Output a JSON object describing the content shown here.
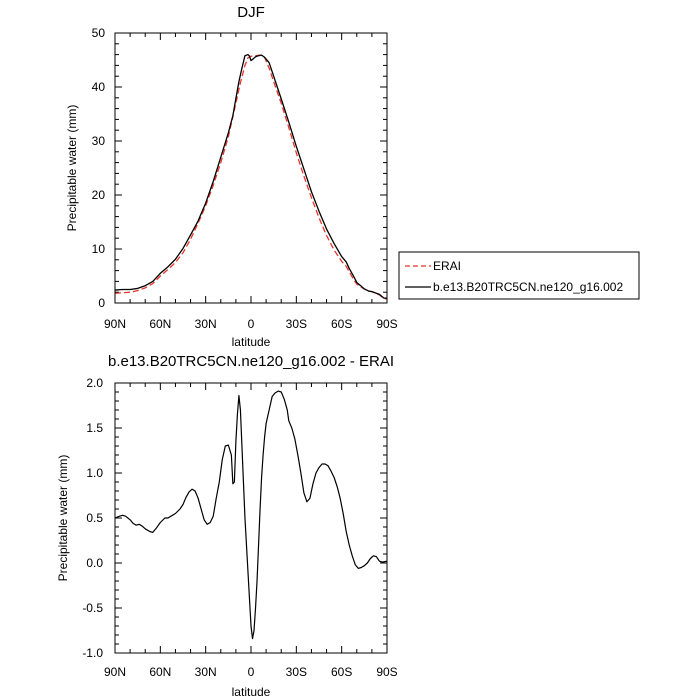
{
  "chart_data": [
    {
      "type": "line",
      "title": "DJF",
      "xlabel": "latitude",
      "ylabel": "Precipitable water (mm)",
      "xlim": [
        90,
        -90
      ],
      "ylim": [
        0,
        50
      ],
      "xticks": [
        90,
        60,
        30,
        0,
        -30,
        -60,
        -90
      ],
      "xtick_labels": [
        "90N",
        "60N",
        "30N",
        "0",
        "30S",
        "60S",
        "90S"
      ],
      "yticks": [
        0,
        10,
        20,
        30,
        40,
        50
      ],
      "ytick_labels": [
        "0",
        "10",
        "20",
        "30",
        "40",
        "50"
      ],
      "legend_position": "right",
      "series": [
        {
          "name": "ERAI",
          "style": "dashed",
          "color": "#e8352b",
          "x": [
            90,
            85,
            80,
            75,
            70,
            65,
            60,
            55,
            50,
            45,
            40,
            35,
            30,
            25,
            20,
            15,
            10,
            7,
            4,
            2,
            0,
            -3,
            -6,
            -9,
            -12,
            -15,
            -20,
            -25,
            -30,
            -35,
            -40,
            -45,
            -50,
            -55,
            -60,
            -63,
            -65,
            -68,
            -70,
            -73,
            -75,
            -78,
            -80,
            -85,
            -88,
            -90
          ],
          "values": [
            1.8,
            1.9,
            2.0,
            2.3,
            2.8,
            3.6,
            5.0,
            6.2,
            7.5,
            9.3,
            11.8,
            14.8,
            18.0,
            21.8,
            26.0,
            30.8,
            37.0,
            40.8,
            44.0,
            45.4,
            45.7,
            45.8,
            45.9,
            45.5,
            43.5,
            41.0,
            37.0,
            32.5,
            27.8,
            23.5,
            19.5,
            15.8,
            12.5,
            9.8,
            7.7,
            6.8,
            5.8,
            4.3,
            3.5,
            2.9,
            2.6,
            2.2,
            2.1,
            1.5,
            0.8,
            0.8
          ]
        },
        {
          "name": "b.e13.B20TRC5CN.ne120_g16.002",
          "style": "solid",
          "color": "#000000",
          "x": [
            90,
            85,
            80,
            75,
            70,
            65,
            60,
            55,
            50,
            45,
            40,
            35,
            30,
            25,
            20,
            15,
            12,
            10,
            8,
            6,
            4,
            2,
            1,
            0,
            -1,
            -3,
            -5,
            -7,
            -9,
            -12,
            -15,
            -20,
            -25,
            -30,
            -35,
            -40,
            -45,
            -50,
            -55,
            -60,
            -63,
            -65,
            -68,
            -70,
            -73,
            -75,
            -78,
            -80,
            -85,
            -88,
            -90
          ],
          "values": [
            2.4,
            2.5,
            2.5,
            2.7,
            3.2,
            4.0,
            5.5,
            6.7,
            8.1,
            10.1,
            12.6,
            15.2,
            18.5,
            22.5,
            27.0,
            31.5,
            34.7,
            37.9,
            41.0,
            43.5,
            45.8,
            46.0,
            45.7,
            44.9,
            45.1,
            45.6,
            45.8,
            45.9,
            45.5,
            44.5,
            42.0,
            37.8,
            33.5,
            29.0,
            24.8,
            20.6,
            17.0,
            13.7,
            11.0,
            8.6,
            7.6,
            6.4,
            4.9,
            3.8,
            3.1,
            2.6,
            2.2,
            2.1,
            1.6,
            0.9,
            0.9
          ]
        }
      ]
    },
    {
      "type": "line",
      "title": "b.e13.B20TRC5CN.ne120_g16.002 - ERAI",
      "xlabel": "latitude",
      "ylabel": "Precipitable water (mm)",
      "xlim": [
        90,
        -90
      ],
      "ylim": [
        -1.0,
        2.0
      ],
      "xticks": [
        90,
        60,
        30,
        0,
        -30,
        -60,
        -90
      ],
      "xtick_labels": [
        "90N",
        "60N",
        "30N",
        "0",
        "30S",
        "60S",
        "90S"
      ],
      "yticks": [
        -1.0,
        -0.5,
        0.0,
        0.5,
        1.0,
        1.5,
        2.0
      ],
      "ytick_labels": [
        "-1.0",
        "-0.5",
        "0.0",
        "0.5",
        "1.0",
        "1.5",
        "2.0"
      ],
      "series": [
        {
          "name": "b.e13.B20TRC5CN.ne120_g16.002 - ERAI",
          "style": "solid",
          "color": "#000000",
          "x": [
            90,
            87,
            85,
            83,
            80,
            78,
            76,
            74,
            72,
            70,
            67,
            65,
            63,
            60,
            57,
            55,
            53,
            50,
            47,
            45,
            43,
            41,
            39,
            37,
            35,
            33,
            31,
            29,
            27,
            25,
            23,
            21,
            19,
            17,
            15,
            13,
            12,
            11,
            10,
            9,
            8,
            7,
            6,
            5,
            4,
            3,
            2,
            1,
            0,
            -1,
            -2,
            -3,
            -4,
            -5,
            -6,
            -7,
            -8,
            -9,
            -10,
            -12,
            -14,
            -16,
            -18,
            -20,
            -22,
            -24,
            -25,
            -27,
            -29,
            -31,
            -33,
            -35,
            -37,
            -39,
            -41,
            -43,
            -45,
            -47,
            -49,
            -51,
            -53,
            -55,
            -57,
            -59,
            -61,
            -63,
            -65,
            -67,
            -69,
            -71,
            -73,
            -75,
            -77,
            -79,
            -81,
            -83,
            -85,
            -87,
            -90
          ],
          "values": [
            0.5,
            0.52,
            0.53,
            0.52,
            0.48,
            0.44,
            0.42,
            0.43,
            0.41,
            0.38,
            0.35,
            0.34,
            0.38,
            0.45,
            0.5,
            0.5,
            0.52,
            0.55,
            0.6,
            0.65,
            0.73,
            0.79,
            0.82,
            0.8,
            0.72,
            0.6,
            0.48,
            0.43,
            0.45,
            0.52,
            0.72,
            0.9,
            1.15,
            1.3,
            1.31,
            1.2,
            0.88,
            0.9,
            1.35,
            1.65,
            1.86,
            1.7,
            1.3,
            0.9,
            0.5,
            0.2,
            -0.1,
            -0.4,
            -0.7,
            -0.84,
            -0.75,
            -0.5,
            -0.2,
            0.2,
            0.6,
            0.95,
            1.2,
            1.4,
            1.55,
            1.7,
            1.85,
            1.89,
            1.91,
            1.9,
            1.82,
            1.7,
            1.58,
            1.5,
            1.38,
            1.2,
            1.0,
            0.78,
            0.68,
            0.72,
            0.88,
            1.0,
            1.06,
            1.1,
            1.1,
            1.08,
            1.02,
            0.95,
            0.85,
            0.72,
            0.55,
            0.35,
            0.2,
            0.08,
            -0.02,
            -0.06,
            -0.05,
            -0.03,
            0.0,
            0.05,
            0.08,
            0.07,
            0.02,
            0.01,
            0.02
          ]
        }
      ]
    }
  ]
}
